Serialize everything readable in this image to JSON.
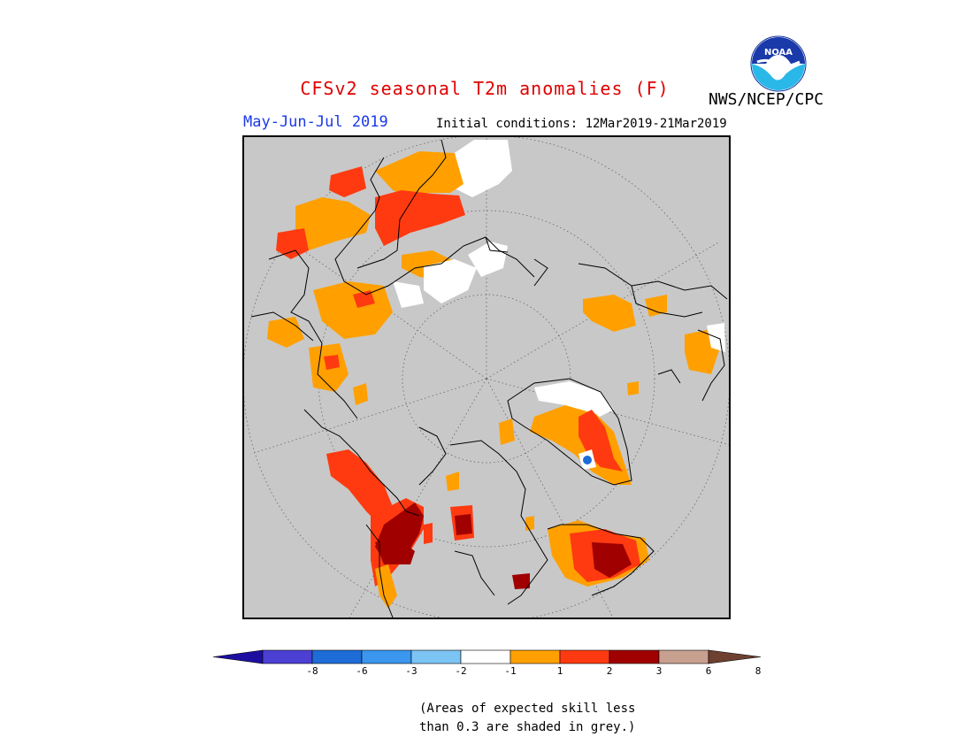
{
  "title": {
    "text": "CFSv2 seasonal T2m anomalies (F)",
    "color": "#e00000"
  },
  "agency": "NWS/NCEP/CPC",
  "logo": {
    "icon": "noaa-logo-icon",
    "text": "NOAA"
  },
  "season": {
    "text": "May-Jun-Jul 2019",
    "color": "#1c39e8"
  },
  "initial_conditions": "Initial conditions: 12Mar2019-21Mar2019",
  "map": {
    "projection": "polar stereographic (north pole)",
    "background_color": "#c8c8c8",
    "coastline_color": "#000000",
    "graticule": "dotted"
  },
  "colorbar": {
    "tick_labels": [
      "-8",
      "-6",
      "-3",
      "-2",
      "-1",
      "1",
      "2",
      "3",
      "6",
      "8"
    ],
    "colors": [
      "#1c0fa0",
      "#4b3fd4",
      "#1e6cd8",
      "#3a96ee",
      "#7cc4f4",
      "#ffffff",
      "#ffa000",
      "#ff3a10",
      "#a00000",
      "#c8a090",
      "#6e4032"
    ],
    "extend": "both"
  },
  "note": {
    "line1": "(Areas of expected skill less",
    "line2": "than 0.3 are shaded in grey.)"
  }
}
